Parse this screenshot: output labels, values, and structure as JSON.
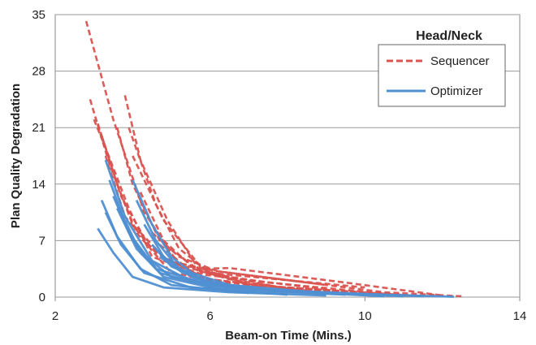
{
  "chart_data": {
    "type": "line",
    "title": "",
    "xlabel": "Beam-on Time (Mins.)",
    "ylabel": "Plan Quality Degradation",
    "xlim": [
      2,
      14
    ],
    "ylim": [
      0,
      35
    ],
    "xticks": [
      2,
      6,
      10,
      14
    ],
    "yticks": [
      0,
      7,
      14,
      21,
      28,
      35
    ],
    "grid": "horizontal",
    "legend": {
      "title": "Head/Neck",
      "placement": "top-right",
      "entries": [
        {
          "name": "Sequencer",
          "style": "dashed",
          "color": "#d9534f"
        },
        {
          "name": "Optimizer",
          "style": "solid",
          "color": "#4f8fd2"
        }
      ]
    },
    "series": [
      {
        "name": "Sequencer",
        "color": "#d9534f",
        "style": "dashed",
        "lines": [
          [
            [
              2.8,
              34.2
            ],
            [
              3.5,
              22.0
            ],
            [
              4.3,
              10.5
            ],
            [
              5.2,
              4.0
            ],
            [
              6.5,
              2.2
            ],
            [
              8.0,
              1.1
            ],
            [
              10.0,
              0.4
            ]
          ],
          [
            [
              2.9,
              24.5
            ],
            [
              3.4,
              16.5
            ],
            [
              4.0,
              9.0
            ],
            [
              4.9,
              4.5
            ],
            [
              6.2,
              3.2
            ],
            [
              10.5,
              0.6
            ],
            [
              12.5,
              0.1
            ]
          ],
          [
            [
              3.0,
              22.0
            ],
            [
              3.3,
              18.5
            ],
            [
              3.9,
              11.0
            ],
            [
              4.5,
              5.0
            ],
            [
              5.8,
              2.8
            ],
            [
              9.0,
              1.0
            ]
          ],
          [
            [
              3.1,
              21.5
            ],
            [
              3.6,
              14.0
            ],
            [
              4.1,
              8.0
            ],
            [
              5.0,
              3.0
            ],
            [
              7.0,
              1.5
            ],
            [
              11.0,
              0.3
            ]
          ],
          [
            [
              3.2,
              20.0
            ],
            [
              3.7,
              12.5
            ],
            [
              4.4,
              6.5
            ],
            [
              5.5,
              2.5
            ],
            [
              8.5,
              0.8
            ]
          ],
          [
            [
              3.3,
              17.5
            ],
            [
              3.8,
              10.0
            ],
            [
              4.6,
              5.5
            ],
            [
              6.0,
              2.0
            ],
            [
              9.5,
              0.5
            ]
          ],
          [
            [
              3.6,
              21.0
            ],
            [
              4.0,
              14.0
            ],
            [
              4.7,
              7.0
            ],
            [
              5.8,
              3.0
            ],
            [
              7.5,
              1.8
            ],
            [
              10.8,
              0.3
            ]
          ],
          [
            [
              3.8,
              25.0
            ],
            [
              4.2,
              17.0
            ],
            [
              4.9,
              9.5
            ],
            [
              5.7,
              3.5
            ],
            [
              6.5,
              3.6
            ],
            [
              9.5,
              1.8
            ],
            [
              12.0,
              0.2
            ]
          ],
          [
            [
              3.9,
              21.0
            ],
            [
              4.6,
              11.5
            ],
            [
              5.2,
              6.0
            ],
            [
              6.0,
              3.0
            ],
            [
              10.0,
              1.2
            ]
          ],
          [
            [
              4.0,
              17.5
            ],
            [
              4.8,
              9.5
            ],
            [
              5.8,
              3.5
            ],
            [
              7.0,
              1.5
            ],
            [
              11.2,
              0.2
            ]
          ],
          [
            [
              4.2,
              13.0
            ],
            [
              4.8,
              7.0
            ],
            [
              5.6,
              3.5
            ],
            [
              7.5,
              1.0
            ]
          ],
          [
            [
              4.5,
              8.0
            ],
            [
              5.2,
              5.0
            ],
            [
              6.2,
              3.2
            ],
            [
              9.0,
              1.5
            ]
          ],
          [
            [
              4.7,
              6.5
            ],
            [
              5.3,
              4.0
            ],
            [
              6.5,
              2.5
            ],
            [
              8.0,
              1.0
            ]
          ]
        ]
      },
      {
        "name": "Optimizer",
        "color": "#4f8fd2",
        "style": "solid",
        "lines": [
          [
            [
              3.1,
              8.5
            ],
            [
              3.5,
              5.5
            ],
            [
              4.0,
              2.5
            ],
            [
              4.8,
              1.2
            ],
            [
              6.5,
              0.6
            ],
            [
              9.0,
              0.2
            ]
          ],
          [
            [
              3.2,
              12.0
            ],
            [
              3.6,
              7.5
            ],
            [
              4.2,
              3.5
            ],
            [
              5.0,
              1.5
            ],
            [
              7.0,
              0.5
            ]
          ],
          [
            [
              3.3,
              10.5
            ],
            [
              3.7,
              6.5
            ],
            [
              4.3,
              3.0
            ],
            [
              5.5,
              1.2
            ],
            [
              8.0,
              0.3
            ]
          ],
          [
            [
              3.3,
              17.0
            ],
            [
              3.8,
              10.0
            ],
            [
              4.5,
              4.5
            ],
            [
              5.5,
              2.0
            ],
            [
              7.5,
              0.8
            ],
            [
              10.5,
              0.1
            ]
          ],
          [
            [
              3.4,
              14.5
            ],
            [
              3.9,
              8.0
            ],
            [
              4.6,
              3.5
            ],
            [
              6.0,
              1.5
            ],
            [
              9.0,
              0.5
            ],
            [
              12.3,
              0.05
            ]
          ],
          [
            [
              3.5,
              12.5
            ],
            [
              4.0,
              7.0
            ],
            [
              4.7,
              3.0
            ],
            [
              6.0,
              1.3
            ],
            [
              8.5,
              0.6
            ]
          ],
          [
            [
              3.6,
              11.0
            ],
            [
              4.1,
              6.0
            ],
            [
              4.8,
              2.5
            ],
            [
              6.2,
              1.0
            ],
            [
              9.5,
              0.3
            ]
          ],
          [
            [
              3.8,
              9.5
            ],
            [
              4.2,
              5.5
            ],
            [
              5.0,
              2.5
            ],
            [
              6.5,
              1.2
            ],
            [
              10.0,
              0.3
            ]
          ],
          [
            [
              4.0,
              14.5
            ],
            [
              4.5,
              9.0
            ],
            [
              5.0,
              5.0
            ],
            [
              5.8,
              2.0
            ],
            [
              7.5,
              0.8
            ],
            [
              11.0,
              0.1
            ]
          ],
          [
            [
              4.1,
              12.0
            ],
            [
              4.6,
              7.0
            ],
            [
              5.2,
              3.5
            ],
            [
              6.5,
              1.5
            ],
            [
              9.0,
              0.5
            ]
          ],
          [
            [
              4.3,
              9.0
            ],
            [
              4.8,
              5.0
            ],
            [
              5.6,
              2.3
            ],
            [
              7.0,
              1.0
            ],
            [
              11.5,
              0.1
            ]
          ],
          [
            [
              4.5,
              6.5
            ],
            [
              5.0,
              3.8
            ],
            [
              6.0,
              1.8
            ],
            [
              8.0,
              0.7
            ]
          ],
          [
            [
              4.7,
              5.0
            ],
            [
              5.3,
              3.0
            ],
            [
              6.3,
              1.5
            ],
            [
              9.0,
              0.4
            ]
          ]
        ]
      }
    ]
  }
}
